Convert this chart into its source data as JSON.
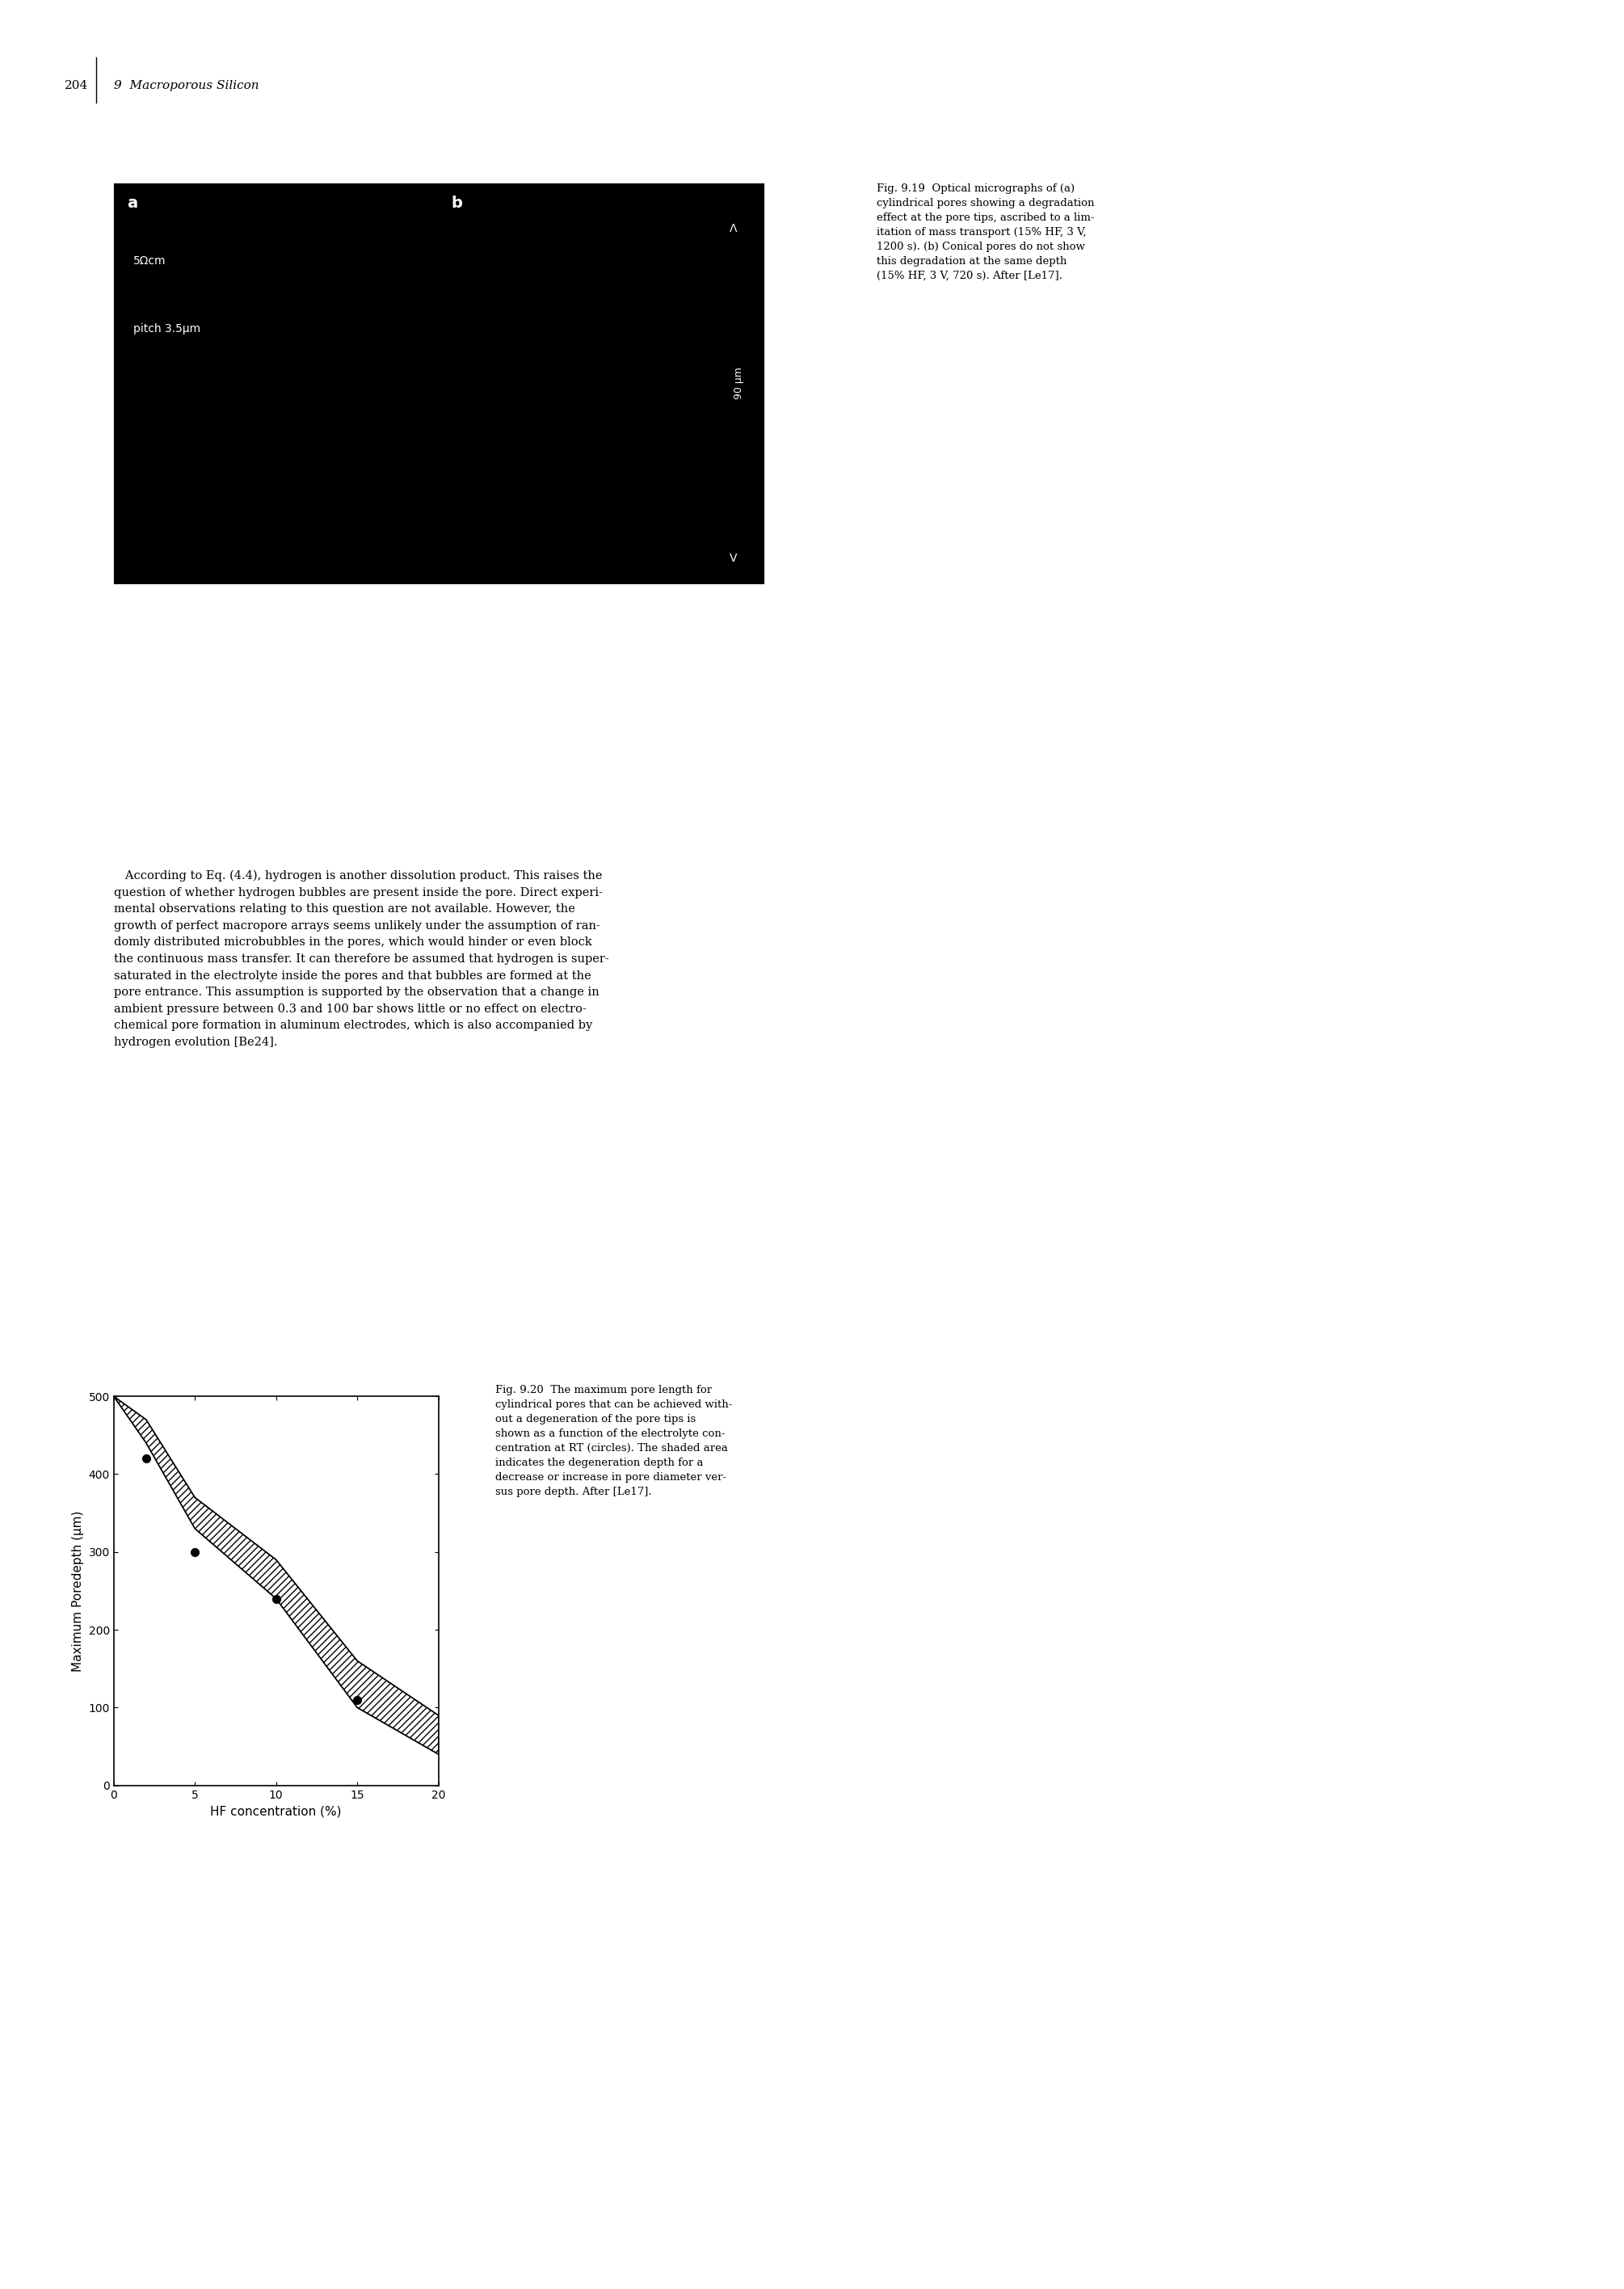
{
  "title": "Fig. 9.20",
  "xlabel": "HF concentration (%)",
  "ylabel": "Maximum Poredepth (μm)",
  "xlim": [
    0,
    20
  ],
  "ylim": [
    0,
    500
  ],
  "xticks": [
    0,
    5,
    10,
    15,
    20
  ],
  "yticks": [
    0,
    100,
    200,
    300,
    400,
    500
  ],
  "data_points_x": [
    2,
    5,
    10,
    15
  ],
  "data_points_y": [
    420,
    300,
    240,
    110
  ],
  "upper_band_x": [
    0,
    2,
    5,
    10,
    15,
    20
  ],
  "upper_band_y": [
    500,
    470,
    370,
    290,
    160,
    90
  ],
  "lower_band_x": [
    0,
    2,
    5,
    10,
    15,
    20
  ],
  "lower_band_y": [
    500,
    440,
    330,
    240,
    100,
    40
  ],
  "hatch_pattern": "////",
  "bg_color": "#ffffff",
  "spine_color": "#000000",
  "tick_color": "#000000",
  "label_fontsize": 11,
  "tick_fontsize": 10,
  "marker": "o",
  "marker_size": 7,
  "marker_color": "#000000",
  "line_color": "#000000"
}
